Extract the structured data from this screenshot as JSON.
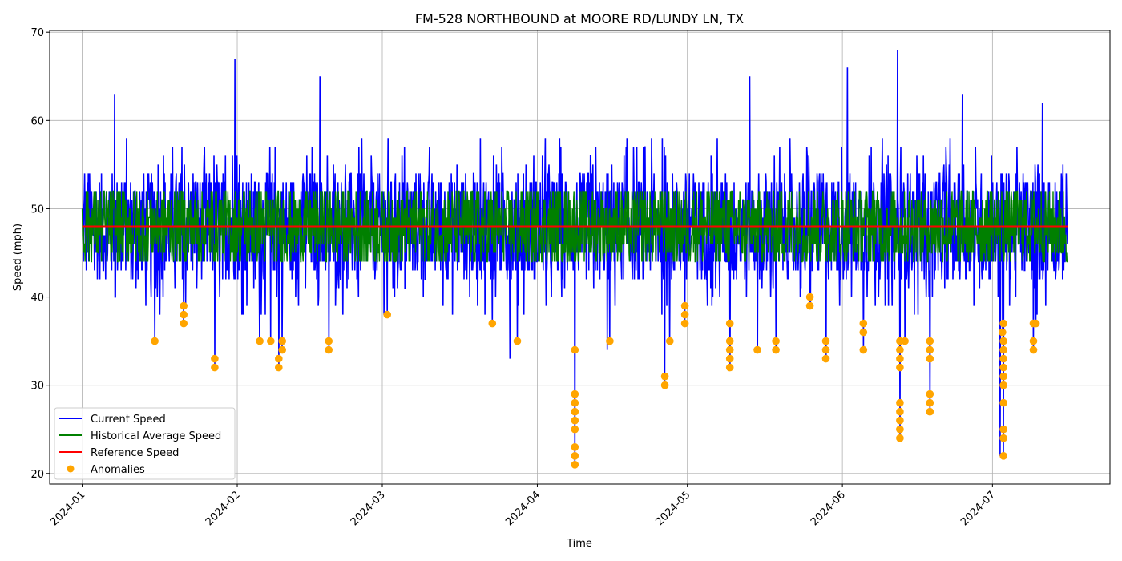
{
  "chart_data": {
    "type": "line",
    "title": "FM-528 NORTHBOUND at MOORE RD/LUNDY LN, TX",
    "xlabel": "Time",
    "ylabel": "Speed (mph)",
    "grid": true,
    "legend_position": "lower-left",
    "xlim_days": [
      -6.5,
      205.5
    ],
    "ylim": [
      18.8,
      70.2
    ],
    "y_ticks": [
      20,
      30,
      40,
      50,
      60,
      70
    ],
    "x_ticks": [
      {
        "label": "2024-01",
        "day": 0
      },
      {
        "label": "2024-02",
        "day": 31
      },
      {
        "label": "2024-03",
        "day": 60
      },
      {
        "label": "2024-04",
        "day": 91
      },
      {
        "label": "2024-05",
        "day": 121
      },
      {
        "label": "2024-06",
        "day": 152
      },
      {
        "label": "2024-07",
        "day": 182
      }
    ],
    "reference_speed": 48,
    "current_speed_summary": {
      "start_day": 0,
      "end_day": 197,
      "typical_min": 40,
      "typical_max": 58,
      "peaks": [
        {
          "day": 6.5,
          "value": 63
        },
        {
          "day": 30.5,
          "value": 67
        },
        {
          "day": 47.5,
          "value": 65
        },
        {
          "day": 133.5,
          "value": 65
        },
        {
          "day": 153,
          "value": 66
        },
        {
          "day": 163,
          "value": 68
        },
        {
          "day": 176,
          "value": 63
        },
        {
          "day": 192,
          "value": 62
        }
      ],
      "dips": [
        {
          "day": 98.5,
          "value": 21
        },
        {
          "day": 163.5,
          "value": 24
        },
        {
          "day": 183.5,
          "value": 22
        },
        {
          "day": 169.5,
          "value": 27
        },
        {
          "day": 85.5,
          "value": 33
        },
        {
          "day": 105,
          "value": 34
        }
      ]
    },
    "historical_average_summary": {
      "min": 44,
      "max": 53,
      "center": 48
    },
    "series": [
      {
        "name": "Current Speed",
        "color": "#0000ff"
      },
      {
        "name": "Historical Average Speed",
        "color": "#008000"
      },
      {
        "name": "Reference Speed",
        "color": "#ff0000"
      },
      {
        "name": "Anomalies",
        "color": "#ffa500"
      }
    ],
    "anomalies": [
      {
        "day": 14.5,
        "speed": 35
      },
      {
        "day": 20.3,
        "speed": 37
      },
      {
        "day": 20.3,
        "speed": 38
      },
      {
        "day": 20.3,
        "speed": 39
      },
      {
        "day": 26.5,
        "speed": 32
      },
      {
        "day": 26.5,
        "speed": 33
      },
      {
        "day": 35.5,
        "speed": 35
      },
      {
        "day": 37.7,
        "speed": 35
      },
      {
        "day": 39.3,
        "speed": 32
      },
      {
        "day": 39.3,
        "speed": 33
      },
      {
        "day": 40,
        "speed": 34
      },
      {
        "day": 40,
        "speed": 35
      },
      {
        "day": 49.3,
        "speed": 34
      },
      {
        "day": 49.3,
        "speed": 35
      },
      {
        "day": 61,
        "speed": 38
      },
      {
        "day": 82,
        "speed": 37
      },
      {
        "day": 87,
        "speed": 35
      },
      {
        "day": 98.5,
        "speed": 21
      },
      {
        "day": 98.5,
        "speed": 22
      },
      {
        "day": 98.5,
        "speed": 23
      },
      {
        "day": 98.5,
        "speed": 25
      },
      {
        "day": 98.5,
        "speed": 26
      },
      {
        "day": 98.5,
        "speed": 27
      },
      {
        "day": 98.5,
        "speed": 28
      },
      {
        "day": 98.5,
        "speed": 29
      },
      {
        "day": 98.5,
        "speed": 34
      },
      {
        "day": 105.5,
        "speed": 35
      },
      {
        "day": 116.5,
        "speed": 30
      },
      {
        "day": 116.5,
        "speed": 31
      },
      {
        "day": 117.5,
        "speed": 35
      },
      {
        "day": 120.5,
        "speed": 37
      },
      {
        "day": 120.5,
        "speed": 38
      },
      {
        "day": 120.5,
        "speed": 39
      },
      {
        "day": 129.5,
        "speed": 32
      },
      {
        "day": 129.5,
        "speed": 33
      },
      {
        "day": 129.5,
        "speed": 34
      },
      {
        "day": 129.5,
        "speed": 35
      },
      {
        "day": 129.5,
        "speed": 37
      },
      {
        "day": 135,
        "speed": 34
      },
      {
        "day": 138.7,
        "speed": 34
      },
      {
        "day": 138.7,
        "speed": 35
      },
      {
        "day": 145.5,
        "speed": 39
      },
      {
        "day": 145.5,
        "speed": 40
      },
      {
        "day": 148.7,
        "speed": 33
      },
      {
        "day": 148.7,
        "speed": 34
      },
      {
        "day": 148.7,
        "speed": 35
      },
      {
        "day": 156.2,
        "speed": 34
      },
      {
        "day": 156.2,
        "speed": 36
      },
      {
        "day": 156.2,
        "speed": 37
      },
      {
        "day": 163.5,
        "speed": 24
      },
      {
        "day": 163.5,
        "speed": 25
      },
      {
        "day": 163.5,
        "speed": 26
      },
      {
        "day": 163.5,
        "speed": 27
      },
      {
        "day": 163.5,
        "speed": 28
      },
      {
        "day": 163.5,
        "speed": 32
      },
      {
        "day": 163.5,
        "speed": 33
      },
      {
        "day": 163.5,
        "speed": 34
      },
      {
        "day": 163.5,
        "speed": 35
      },
      {
        "day": 164.5,
        "speed": 35
      },
      {
        "day": 169.5,
        "speed": 27
      },
      {
        "day": 169.5,
        "speed": 28
      },
      {
        "day": 169.5,
        "speed": 29
      },
      {
        "day": 169.5,
        "speed": 33
      },
      {
        "day": 169.5,
        "speed": 34
      },
      {
        "day": 169.5,
        "speed": 35
      },
      {
        "day": 184.2,
        "speed": 22
      },
      {
        "day": 184.2,
        "speed": 24
      },
      {
        "day": 184.2,
        "speed": 25
      },
      {
        "day": 184.2,
        "speed": 28
      },
      {
        "day": 184.2,
        "speed": 30
      },
      {
        "day": 184.2,
        "speed": 31
      },
      {
        "day": 184.2,
        "speed": 32
      },
      {
        "day": 184.2,
        "speed": 33
      },
      {
        "day": 184.2,
        "speed": 34
      },
      {
        "day": 184.2,
        "speed": 35
      },
      {
        "day": 184,
        "speed": 36
      },
      {
        "day": 184.2,
        "speed": 37
      },
      {
        "day": 190.2,
        "speed": 34
      },
      {
        "day": 190.2,
        "speed": 35
      },
      {
        "day": 190.2,
        "speed": 37
      },
      {
        "day": 190.7,
        "speed": 37
      }
    ]
  }
}
